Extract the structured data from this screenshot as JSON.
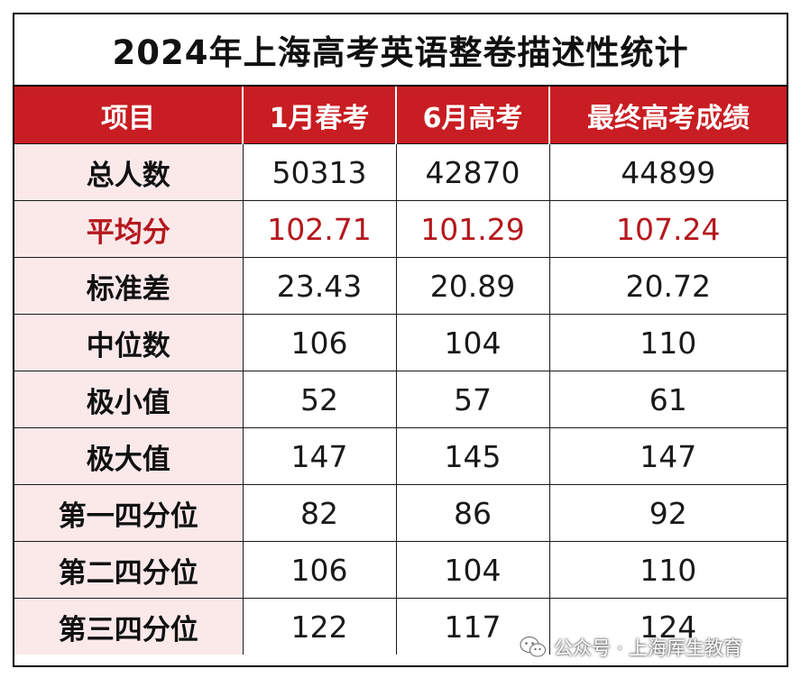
{
  "title": "2024年上海高考英语整卷描述性统计",
  "headers": [
    "项目",
    "1月春考",
    "6月高考",
    "最终高考成绩"
  ],
  "rows": [
    {
      "label": "总人数",
      "values": [
        "50313",
        "42870",
        "44899"
      ]
    },
    {
      "label": "平均分",
      "values": [
        "102.71",
        "101.29",
        "107.24"
      ],
      "highlight": true
    },
    {
      "label": "标准差",
      "values": [
        "23.43",
        "20.89",
        "20.72"
      ]
    },
    {
      "label": "中位数",
      "values": [
        "106",
        "104",
        "110"
      ]
    },
    {
      "label": "极小值",
      "values": [
        "52",
        "57",
        "61"
      ]
    },
    {
      "label": "极大值",
      "values": [
        "147",
        "145",
        "147"
      ]
    },
    {
      "label": "第一四分位",
      "values": [
        "82",
        "86",
        "92"
      ]
    },
    {
      "label": "第二四分位",
      "values": [
        "106",
        "104",
        "110"
      ]
    },
    {
      "label": "第三四分位",
      "values": [
        "122",
        "117",
        "124"
      ]
    }
  ],
  "watermark": {
    "text": "公众号 · 上海厍生教育",
    "icon": "wechat-icon"
  },
  "colors": {
    "header_bg": "#c81d22",
    "label_bg": "#fbe9ea",
    "highlight_text": "#b5171c"
  }
}
